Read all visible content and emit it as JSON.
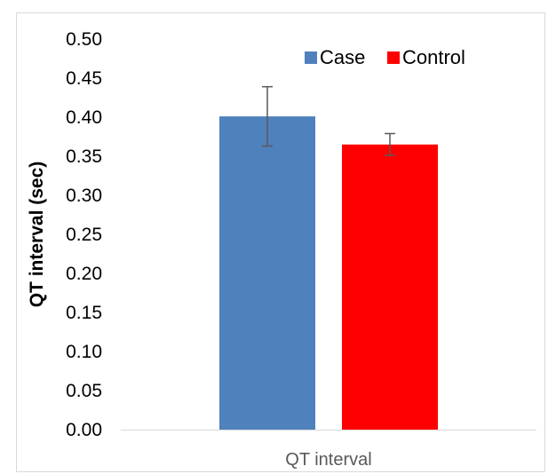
{
  "chart_data": {
    "type": "bar",
    "categories": [
      "QT interval"
    ],
    "series": [
      {
        "name": "Case",
        "values": [
          0.401
        ],
        "error": [
          0.038
        ],
        "color": "#4f81bd"
      },
      {
        "name": "Control",
        "values": [
          0.365
        ],
        "error": [
          0.014
        ],
        "color": "#ff0000"
      }
    ],
    "ylabel": "QT interval (sec)",
    "xlabel": "",
    "ylim": [
      0,
      0.5
    ],
    "yticks": [
      "0.00",
      "0.05",
      "0.10",
      "0.15",
      "0.20",
      "0.25",
      "0.30",
      "0.35",
      "0.40",
      "0.45",
      "0.50"
    ],
    "grid": false,
    "legend": "top-right"
  }
}
